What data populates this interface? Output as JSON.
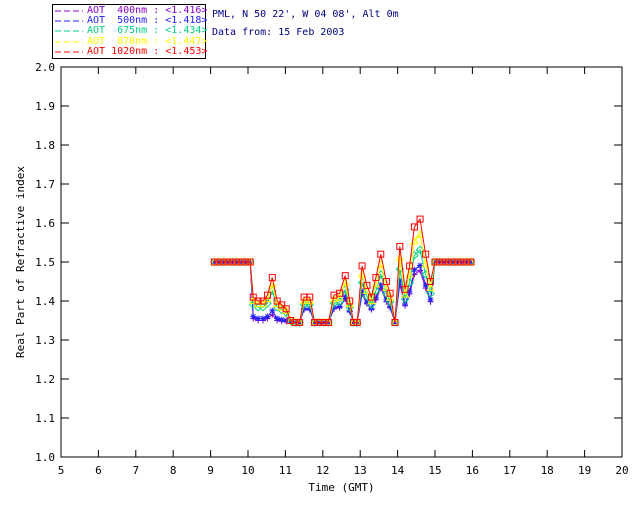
{
  "header": {
    "line1": "PML, N 50 22', W 04 08', Alt 0m",
    "line2": "Data from: 15 Feb 2003",
    "text_color": "#000080"
  },
  "chart_data": {
    "type": "line",
    "title": "PML, N 50 22', W 04 08', Alt 0m",
    "subtitle": "Data from: 15 Feb 2003",
    "xlabel": "Time (GMT)",
    "ylabel": "Real Part of Refractive index",
    "xlim": [
      5,
      20
    ],
    "ylim": [
      1.0,
      2.0
    ],
    "xticks": [
      5,
      6,
      7,
      8,
      9,
      10,
      11,
      12,
      13,
      14,
      15,
      16,
      17,
      18,
      19,
      20
    ],
    "yticks": [
      1.0,
      1.1,
      1.2,
      1.3,
      1.4,
      1.5,
      1.6,
      1.7,
      1.8,
      1.9,
      2.0
    ],
    "grid": false,
    "legend_position": "top-left",
    "x": [
      9.1,
      9.22,
      9.34,
      9.46,
      9.58,
      9.7,
      9.82,
      9.94,
      10.06,
      10.14,
      10.27,
      10.4,
      10.52,
      10.65,
      10.78,
      10.9,
      11.02,
      11.14,
      11.26,
      11.38,
      11.5,
      11.65,
      11.78,
      11.9,
      12.03,
      12.15,
      12.3,
      12.45,
      12.6,
      12.72,
      12.82,
      12.92,
      13.05,
      13.18,
      13.3,
      13.42,
      13.55,
      13.7,
      13.8,
      13.93,
      14.06,
      14.2,
      14.32,
      14.45,
      14.6,
      14.75,
      14.88,
      15.0,
      15.12,
      15.24,
      15.36,
      15.48,
      15.6,
      15.72,
      15.84,
      15.96
    ],
    "series": [
      {
        "name": "AOT  400nm",
        "mean_label": "<1.416>",
        "color": "#8800cc",
        "marker": "plus",
        "values": [
          1.5,
          1.5,
          1.5,
          1.5,
          1.5,
          1.5,
          1.5,
          1.5,
          1.5,
          1.355,
          1.35,
          1.35,
          1.355,
          1.365,
          1.35,
          1.348,
          1.347,
          1.346,
          1.345,
          1.345,
          1.378,
          1.378,
          1.345,
          1.345,
          1.345,
          1.345,
          1.38,
          1.383,
          1.405,
          1.373,
          1.345,
          1.345,
          1.418,
          1.393,
          1.378,
          1.403,
          1.433,
          1.398,
          1.383,
          1.345,
          1.443,
          1.388,
          1.418,
          1.468,
          1.478,
          1.433,
          1.398,
          1.5,
          1.5,
          1.5,
          1.5,
          1.5,
          1.5,
          1.5,
          1.5,
          1.5
        ]
      },
      {
        "name": "AOT  500nm",
        "mean_label": "<1.418>",
        "color": "#2222ff",
        "marker": "asterisk",
        "values": [
          1.5,
          1.5,
          1.5,
          1.5,
          1.5,
          1.5,
          1.5,
          1.5,
          1.5,
          1.36,
          1.355,
          1.355,
          1.36,
          1.375,
          1.355,
          1.352,
          1.35,
          1.347,
          1.345,
          1.345,
          1.381,
          1.381,
          1.345,
          1.345,
          1.345,
          1.345,
          1.384,
          1.386,
          1.411,
          1.375,
          1.345,
          1.345,
          1.425,
          1.397,
          1.381,
          1.408,
          1.441,
          1.403,
          1.386,
          1.345,
          1.452,
          1.392,
          1.425,
          1.48,
          1.491,
          1.441,
          1.403,
          1.5,
          1.5,
          1.5,
          1.5,
          1.5,
          1.5,
          1.5,
          1.5,
          1.5
        ]
      },
      {
        "name": "AOT  675nm",
        "mean_label": "<1.434>",
        "color": "#00d080",
        "marker": "diamond",
        "values": [
          1.5,
          1.5,
          1.5,
          1.5,
          1.5,
          1.5,
          1.5,
          1.5,
          1.5,
          1.391,
          1.384,
          1.384,
          1.394,
          1.426,
          1.384,
          1.377,
          1.37,
          1.349,
          1.345,
          1.345,
          1.391,
          1.391,
          1.345,
          1.345,
          1.345,
          1.345,
          1.394,
          1.398,
          1.429,
          1.384,
          1.345,
          1.345,
          1.447,
          1.412,
          1.391,
          1.426,
          1.468,
          1.419,
          1.398,
          1.345,
          1.482,
          1.405,
          1.447,
          1.517,
          1.531,
          1.468,
          1.419,
          1.5,
          1.5,
          1.5,
          1.5,
          1.5,
          1.5,
          1.5,
          1.5,
          1.5
        ]
      },
      {
        "name": "AOT  870nm",
        "mean_label": "<1.447>",
        "color": "#ffff00",
        "marker": "triangle",
        "values": [
          1.5,
          1.5,
          1.5,
          1.5,
          1.5,
          1.5,
          1.5,
          1.5,
          1.5,
          1.4,
          1.392,
          1.392,
          1.405,
          1.443,
          1.392,
          1.383,
          1.375,
          1.349,
          1.345,
          1.345,
          1.4,
          1.4,
          1.345,
          1.345,
          1.345,
          1.345,
          1.405,
          1.409,
          1.447,
          1.392,
          1.345,
          1.345,
          1.468,
          1.426,
          1.4,
          1.443,
          1.494,
          1.434,
          1.409,
          1.345,
          1.511,
          1.417,
          1.468,
          1.553,
          1.57,
          1.494,
          1.434,
          1.5,
          1.5,
          1.5,
          1.5,
          1.5,
          1.5,
          1.5,
          1.5,
          1.5
        ]
      },
      {
        "name": "AOT 1020nm",
        "mean_label": "<1.453>",
        "color": "#ff0000",
        "marker": "square",
        "values": [
          1.5,
          1.5,
          1.5,
          1.5,
          1.5,
          1.5,
          1.5,
          1.5,
          1.5,
          1.41,
          1.4,
          1.4,
          1.415,
          1.46,
          1.4,
          1.39,
          1.38,
          1.35,
          1.345,
          1.345,
          1.41,
          1.41,
          1.345,
          1.345,
          1.345,
          1.345,
          1.415,
          1.42,
          1.465,
          1.4,
          1.345,
          1.345,
          1.49,
          1.44,
          1.41,
          1.46,
          1.52,
          1.45,
          1.42,
          1.345,
          1.54,
          1.43,
          1.49,
          1.59,
          1.61,
          1.52,
          1.45,
          1.5,
          1.5,
          1.5,
          1.5,
          1.5,
          1.5,
          1.5,
          1.5,
          1.5
        ]
      }
    ]
  }
}
